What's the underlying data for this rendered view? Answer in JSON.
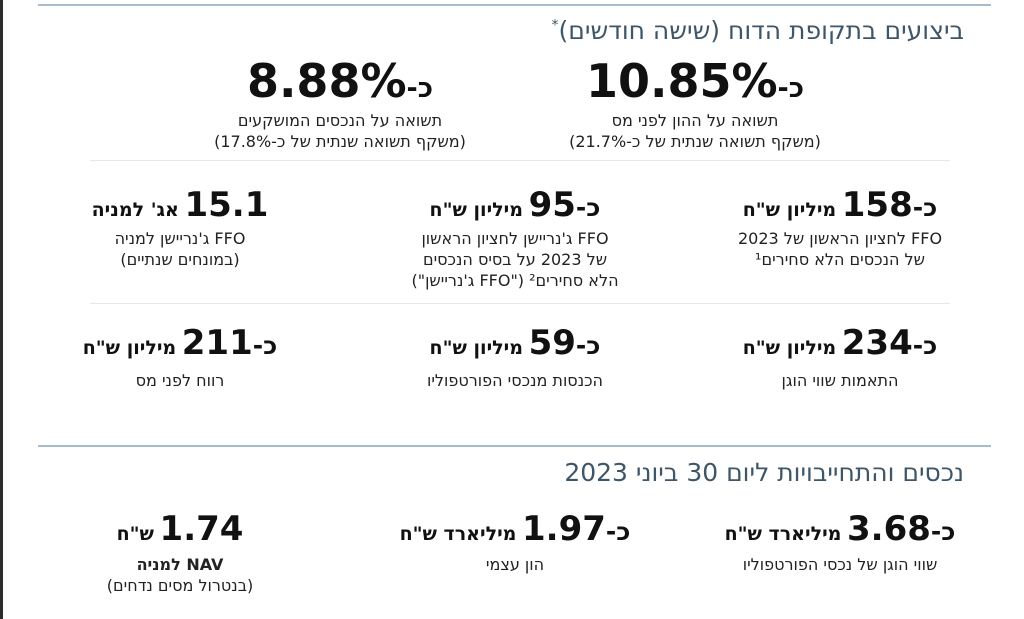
{
  "section1": {
    "title": "ביצועים בתקופת הדוח (שישה חודשים)",
    "star": "*"
  },
  "top_metrics": [
    {
      "prefix": "כ-",
      "value": "10.85%",
      "line1": "תשואה על ההון לפני מס",
      "line2": "(משקף תשואה שנתית של כ-21.7%)"
    },
    {
      "prefix": "כ-",
      "value": "8.88%",
      "line1": "תשואה על הנכסים המושקעים",
      "line2": "(משקף תשואה שנתית של כ-17.8%)"
    }
  ],
  "row2": [
    {
      "prefix": "כ-",
      "value": "158",
      "unit": "מיליון ש\"ח",
      "line1": "FFO לחציון הראשון של 2023",
      "line2": "של הנכסים הלא סחירים¹"
    },
    {
      "prefix": "כ-",
      "value": "95",
      "unit": "מיליון ש\"ח",
      "line1": "FFO ג'נריישן לחציון הראשון",
      "line2": "של 2023 על בסיס הנכסים",
      "line3": "הלא סחירים² (\"FFO ג'נריישן\")"
    },
    {
      "prefix": "",
      "value": "15.1",
      "unit": "אג' למניה",
      "line1": "FFO ג'נריישן למניה",
      "line2": "(במונחים שנתיים)"
    }
  ],
  "row3": [
    {
      "prefix": "כ-",
      "value": "234",
      "unit": "מיליון ש\"ח",
      "line1": "התאמות שווי הוגן"
    },
    {
      "prefix": "כ-",
      "value": "59",
      "unit": "מיליון ש\"ח",
      "line1": "הכנסות מנכסי הפורטפוליו"
    },
    {
      "prefix": "כ-",
      "value": "211",
      "unit": "מיליון ש\"ח",
      "line1": "רווח לפני מס"
    }
  ],
  "section2": {
    "title": "נכסים והתחייבויות ליום 30 ביוני 2023"
  },
  "row4": [
    {
      "prefix": "כ-",
      "value": "3.68",
      "unit": "מיליארד ש\"ח",
      "line1": "שווי הוגן של נכסי הפורטפוליו"
    },
    {
      "prefix": "כ-",
      "value": "1.97",
      "unit": "מיליארד ש\"ח",
      "line1": "הון עצמי"
    },
    {
      "prefix": "",
      "value": "1.74",
      "unit": "ש\"ח",
      "line1": "NAV למניה",
      "line2": "(בנטרול מסים נדחים)"
    }
  ],
  "colors": {
    "title": "#3e5667",
    "rule": "#a9bccb",
    "text": "#1a1a1a"
  }
}
